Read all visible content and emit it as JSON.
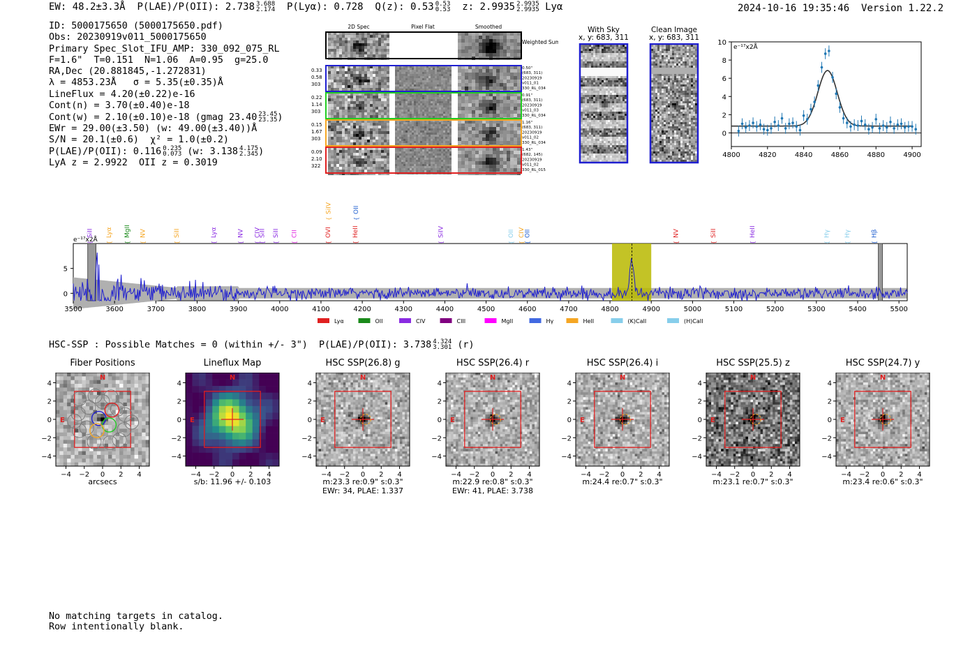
{
  "header": {
    "ew": "EW: 48.2±3.3Å",
    "plae": "P(LAE)/P(OII): 2.738",
    "plae_hi": "3.688",
    "plae_lo": "2.174",
    "plya": "P(Lyα): 0.728",
    "qz": "Q(z): 0.53",
    "qz_hi": "0.53",
    "qz_lo": "0.53",
    "z": "z: 2.9935",
    "z_hi": "2.9935",
    "z_lo": "2.9935",
    "line": "Lyα",
    "timestamp": "2024-10-16 19:35:46",
    "version": "Version 1.22.2"
  },
  "info": {
    "id": "ID: 5000175650 (5000175650.pdf)",
    "obs": "Obs: 20230919v011_5000175650",
    "primary": "Primary Spec_Slot_IFU_AMP: 330_092_075_RL",
    "fparams": "F=1.6\"  T=0.151  N=1.06  A=0.95  g=25.0",
    "radec": "RA,Dec (20.881845,-1.272831)",
    "lambda": "λ = 4853.23Å   σ = 5.35(±0.35)Å",
    "lineflux": "LineFlux = 4.20(±0.22)e-16",
    "contn": "Cont(n) = 3.70(±0.40)e-18",
    "contw": "Cont(w) = 2.10(±0.10)e-18 (gmag 23.40",
    "contw_hi": "23.45",
    "contw_lo": "23.35",
    "contw_close": ")",
    "ewr": "EWr = 29.00(±3.50) (w: 49.00(±3.40))Å",
    "sn": "S/N = 20.1(±0.6)  χ² = 1.0(±0.2)",
    "plae": "P(LAE)/P(OII): 0.116",
    "plae_hi": "0.235",
    "plae_lo": "0.073",
    "plae_w": "(w: 3.138",
    "plae_w_hi": "4.175",
    "plae_w_lo": "2.345",
    "plae_w_close": ")",
    "lyaz": "LyA z = 2.9922  OII z = 0.3019"
  },
  "spec2d": {
    "col_headers": [
      "2D Spec",
      "Pixel Flat",
      "Smoothed"
    ],
    "weighted_label": "Weighted Sum",
    "rows": [
      {
        "w1": "0.33",
        "w2": "0.58",
        "w3": "303",
        "color": "#1f1fd0",
        "r1": "0.50\"",
        "r2": "(683, 311)",
        "r3": "20230919",
        "r4": "v011_01",
        "r5": "330_RL_034"
      },
      {
        "w1": "0.22",
        "w2": "1.14",
        "w3": "303",
        "color": "#22cc22",
        "r1": "0.91\"",
        "r2": "(683, 311)",
        "r3": "20230919",
        "r4": "v011_03",
        "r5": "330_RL_034"
      },
      {
        "w1": "0.15",
        "w2": "1.67",
        "w3": "303",
        "color": "#f5a623",
        "r1": "1.16\"",
        "r2": "(683, 311)",
        "r3": "20230919",
        "r4": "v011_02",
        "r5": "330_RL_034"
      },
      {
        "w1": "0.09",
        "w2": "2.10",
        "w3": "322",
        "color": "#e02020",
        "r1": "1.43\"",
        "r2": "(682, 145)",
        "r3": "20230919",
        "r4": "v011_02",
        "r5": "330_RL_015"
      }
    ]
  },
  "sky": {
    "with_sky": "With Sky",
    "with_sky_xy": "x, y: 683, 311",
    "clean": "Clean Image",
    "clean_xy": "x, y: 683, 311"
  },
  "line_fit": {
    "type": "scatter",
    "yunit": "e⁻¹⁷x2Å",
    "xlim": [
      4800,
      4905
    ],
    "ylim": [
      -1.5,
      10
    ],
    "xticks": [
      4800,
      4820,
      4840,
      4860,
      4880,
      4900
    ],
    "yticks": [
      0,
      2,
      4,
      6,
      8,
      10
    ],
    "x": [
      4804,
      4806,
      4808,
      4810,
      4812,
      4814,
      4816,
      4818,
      4820,
      4822,
      4824,
      4826,
      4828,
      4830,
      4832,
      4834,
      4836,
      4838,
      4840,
      4842,
      4844,
      4846,
      4848,
      4850,
      4852,
      4854,
      4856,
      4858,
      4860,
      4862,
      4864,
      4866,
      4868,
      4870,
      4872,
      4874,
      4876,
      4878,
      4880,
      4882,
      4884,
      4886,
      4888,
      4890,
      4892,
      4894,
      4896,
      4898,
      4900,
      4902
    ],
    "y": [
      0.2,
      1.0,
      0.6,
      0.8,
      1.1,
      0.7,
      0.9,
      0.4,
      0.3,
      0.5,
      1.2,
      0.8,
      1.6,
      0.5,
      1.0,
      1.1,
      0.7,
      0.3,
      1.9,
      1.5,
      2.6,
      3.4,
      5.2,
      7.2,
      8.7,
      9.0,
      6.1,
      4.3,
      2.8,
      1.6,
      1.1,
      0.7,
      0.9,
      0.8,
      1.3,
      0.9,
      0.4,
      0.6,
      1.5,
      0.5,
      0.8,
      0.6,
      1.2,
      0.5,
      0.9,
      1.0,
      0.6,
      0.7,
      0.7,
      0.4
    ],
    "err": 0.6,
    "fit": {
      "center": 4853.2,
      "sigma": 5.35,
      "amp": 6.1,
      "cont": 0.75
    }
  },
  "spectrum": {
    "type": "line",
    "yunit": "e⁻¹⁷x2Å",
    "xlim": [
      3500,
      5520
    ],
    "ylim": [
      -1.5,
      10
    ],
    "xticks": [
      3500,
      3600,
      3700,
      3800,
      3900,
      4000,
      4100,
      4200,
      4300,
      4400,
      4500,
      4600,
      4700,
      4800,
      4900,
      5000,
      5100,
      5200,
      5300,
      5400,
      5500
    ],
    "yticks": [
      0,
      5
    ],
    "highlight": [
      4805,
      4900
    ],
    "line_center": 4853.2,
    "masks": [
      [
        3535,
        3555
      ],
      [
        5450,
        5460
      ]
    ],
    "lines": [
      {
        "name": "SiII",
        "x": 3540,
        "color": "#8a2be2",
        "row": 0
      },
      {
        "name": "Lyα",
        "x": 3586,
        "color": "#f5a623",
        "row": 0
      },
      {
        "name": "MgII",
        "x": 3630,
        "color": "#1a8a1a",
        "row": 0
      },
      {
        "name": "NV",
        "x": 3668,
        "color": "#f5a623",
        "row": 0
      },
      {
        "name": "SiII",
        "x": 3750,
        "color": "#f5a623",
        "row": 0
      },
      {
        "name": "Lyα",
        "x": 3840,
        "color": "#8a2be2",
        "row": 0
      },
      {
        "name": "NV",
        "x": 3905,
        "color": "#8a2be2",
        "row": 0
      },
      {
        "name": "CIV",
        "x": 3945,
        "color": "#8a2be2",
        "row": 0
      },
      {
        "name": "SiII",
        "x": 3957,
        "color": "#8a2be2",
        "row": 0
      },
      {
        "name": "SiII",
        "x": 3990,
        "color": "#8a2be2",
        "row": 0
      },
      {
        "name": "CII",
        "x": 4035,
        "color": "#e020e0",
        "row": 0
      },
      {
        "name": "OVI",
        "x": 4117,
        "color": "#e02020",
        "row": 0
      },
      {
        "name": "SiIV",
        "x": 4118,
        "color": "#f5a623",
        "row": 1
      },
      {
        "name": "OII",
        "x": 4185,
        "color": "#1f5fd0",
        "row": 1
      },
      {
        "name": "HeII",
        "x": 4183,
        "color": "#e02020",
        "row": 0
      },
      {
        "name": "SiIV",
        "x": 4390,
        "color": "#8a2be2",
        "row": 0
      },
      {
        "name": "OII",
        "x": 4560,
        "color": "#87ceeb",
        "row": 0
      },
      {
        "name": "CIV",
        "x": 4585,
        "color": "#f5a623",
        "row": 0
      },
      {
        "name": "OII",
        "x": 4600,
        "color": "#1f5fd0",
        "row": 0
      },
      {
        "name": "NV",
        "x": 4960,
        "color": "#e02020",
        "row": 0
      },
      {
        "name": "SiII",
        "x": 5050,
        "color": "#e02020",
        "row": 0
      },
      {
        "name": "HeII",
        "x": 5145,
        "color": "#8a2be2",
        "row": 0
      },
      {
        "name": "Hγ",
        "x": 5325,
        "color": "#87ceeb",
        "row": 0
      },
      {
        "name": "Hγ",
        "x": 5375,
        "color": "#87ceeb",
        "row": 0
      },
      {
        "name": "Hβ",
        "x": 5440,
        "color": "#1f5fd0",
        "row": 0
      }
    ],
    "legend": [
      {
        "label": "Lyα",
        "color": "#e02020"
      },
      {
        "label": "OII",
        "color": "#1a8a1a"
      },
      {
        "label": "CIV",
        "color": "#8a2be2"
      },
      {
        "label": "CIII",
        "color": "#800080"
      },
      {
        "label": "MgII",
        "color": "#ff00ff"
      },
      {
        "label": "Hγ",
        "color": "#4169e1"
      },
      {
        "label": "HeII",
        "color": "#f5a623"
      },
      {
        "label": "(K)CaII",
        "color": "#87ceeb"
      },
      {
        "label": "(H)CaII",
        "color": "#87ceeb"
      }
    ]
  },
  "hsc": {
    "summary": "HSC-SSP : Possible Matches = 0 (within +/- 3\")  P(LAE)/P(OII): 3.738",
    "summary_hi": "4.324",
    "summary_lo": "3.301",
    "summary_band": "(r)"
  },
  "cutouts": {
    "ticks": [
      "4",
      "2",
      "0",
      "−2",
      "−4"
    ],
    "xticks": [
      "−4",
      "−2",
      "0",
      "2",
      "4"
    ],
    "north": "N",
    "east": "E",
    "panels": [
      {
        "title": "Fiber Positions",
        "cap1": "arcsecs",
        "cap2": ""
      },
      {
        "title": "Lineflux Map",
        "cap1": "s/b: 11.96 +/- 0.103",
        "cap2": ""
      },
      {
        "title": "HSC SSP(26.8) g",
        "cap1": "m:23.3  re:0.9\"  s:0.3\"",
        "cap2": "EWr: 34, PLAE: 1.337"
      },
      {
        "title": "HSC SSP(26.4) r",
        "cap1": "m:22.9  re:0.8\"  s:0.3\"",
        "cap2": "EWr: 41, PLAE: 3.738"
      },
      {
        "title": "HSC SSP(26.4) i",
        "cap1": "m:24.4  re:0.7\"  s:0.3\"",
        "cap2": ""
      },
      {
        "title": "HSC SSP(25.5) z",
        "cap1": "m:23.1  re:0.7\"  s:0.3\"",
        "cap2": ""
      },
      {
        "title": "HSC SSP(24.7) y",
        "cap1": "m:23.4  re:0.6\"  s:0.3\"",
        "cap2": ""
      }
    ]
  },
  "footer": {
    "line1": "No matching targets in catalog.",
    "line2": "Row intentionally blank."
  },
  "colors": {
    "spectrum": "#1f1fd0",
    "highlight": "#b8b800",
    "fit": "#333333",
    "points": "#1f77b4"
  }
}
